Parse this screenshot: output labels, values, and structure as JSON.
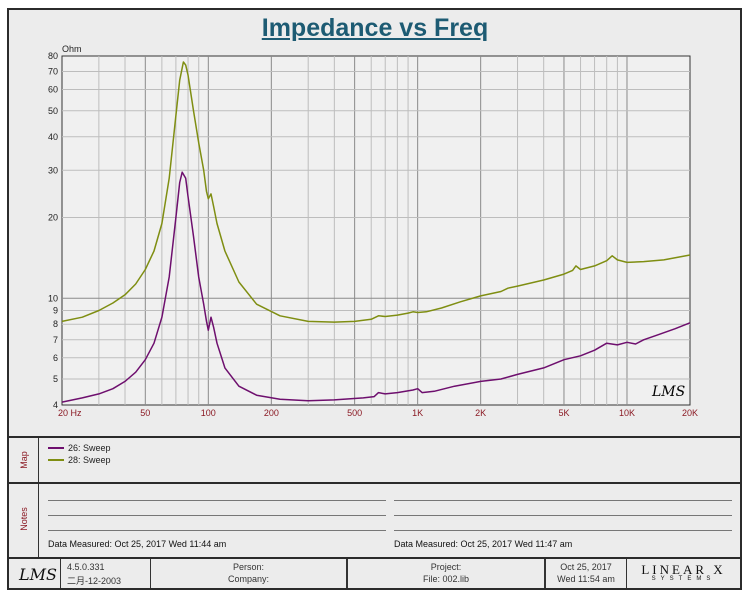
{
  "title": "Impedance vs Freq",
  "chart_data": {
    "type": "line",
    "title": "Impedance vs Freq",
    "ylabel": "Ohm",
    "xlabel": "",
    "x_scale": "log",
    "y_scale": "log",
    "xlim": [
      20,
      20000
    ],
    "ylim": [
      4,
      80
    ],
    "grid": true,
    "x_tick_labels": [
      {
        "v": 20,
        "t": "20  Hz"
      },
      {
        "v": 50,
        "t": "50"
      },
      {
        "v": 100,
        "t": "100"
      },
      {
        "v": 200,
        "t": "200"
      },
      {
        "v": 500,
        "t": "500"
      },
      {
        "v": 1000,
        "t": "1K"
      },
      {
        "v": 2000,
        "t": "2K"
      },
      {
        "v": 5000,
        "t": "5K"
      },
      {
        "v": 10000,
        "t": "10K"
      },
      {
        "v": 20000,
        "t": "20K"
      }
    ],
    "y_tick_labels": [
      {
        "v": 4,
        "t": "4"
      },
      {
        "v": 5,
        "t": "5"
      },
      {
        "v": 6,
        "t": "6"
      },
      {
        "v": 7,
        "t": "7"
      },
      {
        "v": 8,
        "t": "8"
      },
      {
        "v": 9,
        "t": "9"
      },
      {
        "v": 10,
        "t": "10"
      },
      {
        "v": 20,
        "t": "20"
      },
      {
        "v": 30,
        "t": "30"
      },
      {
        "v": 40,
        "t": "40"
      },
      {
        "v": 50,
        "t": "50"
      },
      {
        "v": 60,
        "t": "60"
      },
      {
        "v": 70,
        "t": "70"
      },
      {
        "v": 80,
        "t": "80"
      }
    ],
    "series": [
      {
        "name": "26: Sweep",
        "color": "#6e0f6e",
        "points": [
          [
            20,
            4.1
          ],
          [
            25,
            4.25
          ],
          [
            30,
            4.4
          ],
          [
            35,
            4.6
          ],
          [
            40,
            4.9
          ],
          [
            45,
            5.3
          ],
          [
            50,
            5.9
          ],
          [
            55,
            6.8
          ],
          [
            60,
            8.5
          ],
          [
            65,
            12
          ],
          [
            70,
            20
          ],
          [
            73,
            27
          ],
          [
            75,
            29.5
          ],
          [
            78,
            28
          ],
          [
            80,
            24
          ],
          [
            85,
            17
          ],
          [
            90,
            12
          ],
          [
            95,
            9.5
          ],
          [
            98,
            8.2
          ],
          [
            100,
            7.6
          ],
          [
            103,
            8.5
          ],
          [
            106,
            7.8
          ],
          [
            110,
            6.8
          ],
          [
            120,
            5.5
          ],
          [
            140,
            4.7
          ],
          [
            170,
            4.35
          ],
          [
            220,
            4.2
          ],
          [
            300,
            4.15
          ],
          [
            400,
            4.18
          ],
          [
            550,
            4.25
          ],
          [
            620,
            4.3
          ],
          [
            650,
            4.45
          ],
          [
            700,
            4.4
          ],
          [
            800,
            4.45
          ],
          [
            950,
            4.55
          ],
          [
            1000,
            4.6
          ],
          [
            1050,
            4.45
          ],
          [
            1200,
            4.5
          ],
          [
            1500,
            4.7
          ],
          [
            2000,
            4.9
          ],
          [
            2500,
            5.0
          ],
          [
            3000,
            5.2
          ],
          [
            4000,
            5.5
          ],
          [
            5000,
            5.9
          ],
          [
            6000,
            6.1
          ],
          [
            7000,
            6.4
          ],
          [
            8000,
            6.8
          ],
          [
            9000,
            6.7
          ],
          [
            10000,
            6.85
          ],
          [
            11000,
            6.75
          ],
          [
            12000,
            7.0
          ],
          [
            14000,
            7.3
          ],
          [
            17000,
            7.7
          ],
          [
            20000,
            8.1
          ]
        ]
      },
      {
        "name": "28: Sweep",
        "color": "#7f8e12",
        "points": [
          [
            20,
            8.2
          ],
          [
            25,
            8.5
          ],
          [
            30,
            9.0
          ],
          [
            35,
            9.6
          ],
          [
            40,
            10.3
          ],
          [
            45,
            11.3
          ],
          [
            50,
            12.8
          ],
          [
            55,
            15
          ],
          [
            60,
            19
          ],
          [
            65,
            28
          ],
          [
            70,
            48
          ],
          [
            73,
            65
          ],
          [
            76,
            76
          ],
          [
            78,
            74
          ],
          [
            80,
            68
          ],
          [
            85,
            50
          ],
          [
            90,
            38
          ],
          [
            95,
            30
          ],
          [
            98,
            25
          ],
          [
            100,
            23.5
          ],
          [
            103,
            24.5
          ],
          [
            106,
            22
          ],
          [
            110,
            19
          ],
          [
            120,
            15
          ],
          [
            140,
            11.5
          ],
          [
            170,
            9.5
          ],
          [
            220,
            8.6
          ],
          [
            300,
            8.2
          ],
          [
            400,
            8.15
          ],
          [
            500,
            8.2
          ],
          [
            600,
            8.35
          ],
          [
            650,
            8.6
          ],
          [
            700,
            8.55
          ],
          [
            800,
            8.65
          ],
          [
            900,
            8.8
          ],
          [
            950,
            8.9
          ],
          [
            1000,
            8.85
          ],
          [
            1100,
            8.9
          ],
          [
            1300,
            9.2
          ],
          [
            1600,
            9.7
          ],
          [
            2000,
            10.2
          ],
          [
            2500,
            10.6
          ],
          [
            2700,
            10.9
          ],
          [
            3000,
            11.1
          ],
          [
            4000,
            11.7
          ],
          [
            5000,
            12.3
          ],
          [
            5500,
            12.7
          ],
          [
            5700,
            13.2
          ],
          [
            6000,
            12.8
          ],
          [
            7000,
            13.2
          ],
          [
            8000,
            13.8
          ],
          [
            8500,
            14.4
          ],
          [
            9000,
            13.9
          ],
          [
            10000,
            13.6
          ],
          [
            12000,
            13.7
          ],
          [
            15000,
            13.9
          ],
          [
            20000,
            14.5
          ]
        ]
      }
    ]
  },
  "map": {
    "label": "Map",
    "legend": [
      {
        "label": "26: Sweep",
        "color": "#6e0f6e"
      },
      {
        "label": "28: Sweep",
        "color": "#7f8e12"
      }
    ]
  },
  "notes": {
    "label": "Notes",
    "left_measured": "Data Measured: Oct 25, 2017  Wed 11:44 am",
    "right_measured": "Data Measured: Oct 25, 2017  Wed 11:47 am"
  },
  "footer": {
    "logo": "LMS",
    "version": "4.5.0.331",
    "build_date": "二月-12-2003",
    "person": "Person:",
    "company": "Company:",
    "project": "Project:",
    "file": "File: 002.lib",
    "date": "Oct 25, 2017",
    "time": "Wed 11:54 am",
    "brand": "LINEAR X",
    "brand_sub": "SYSTEMS"
  },
  "watermark": "LMS"
}
